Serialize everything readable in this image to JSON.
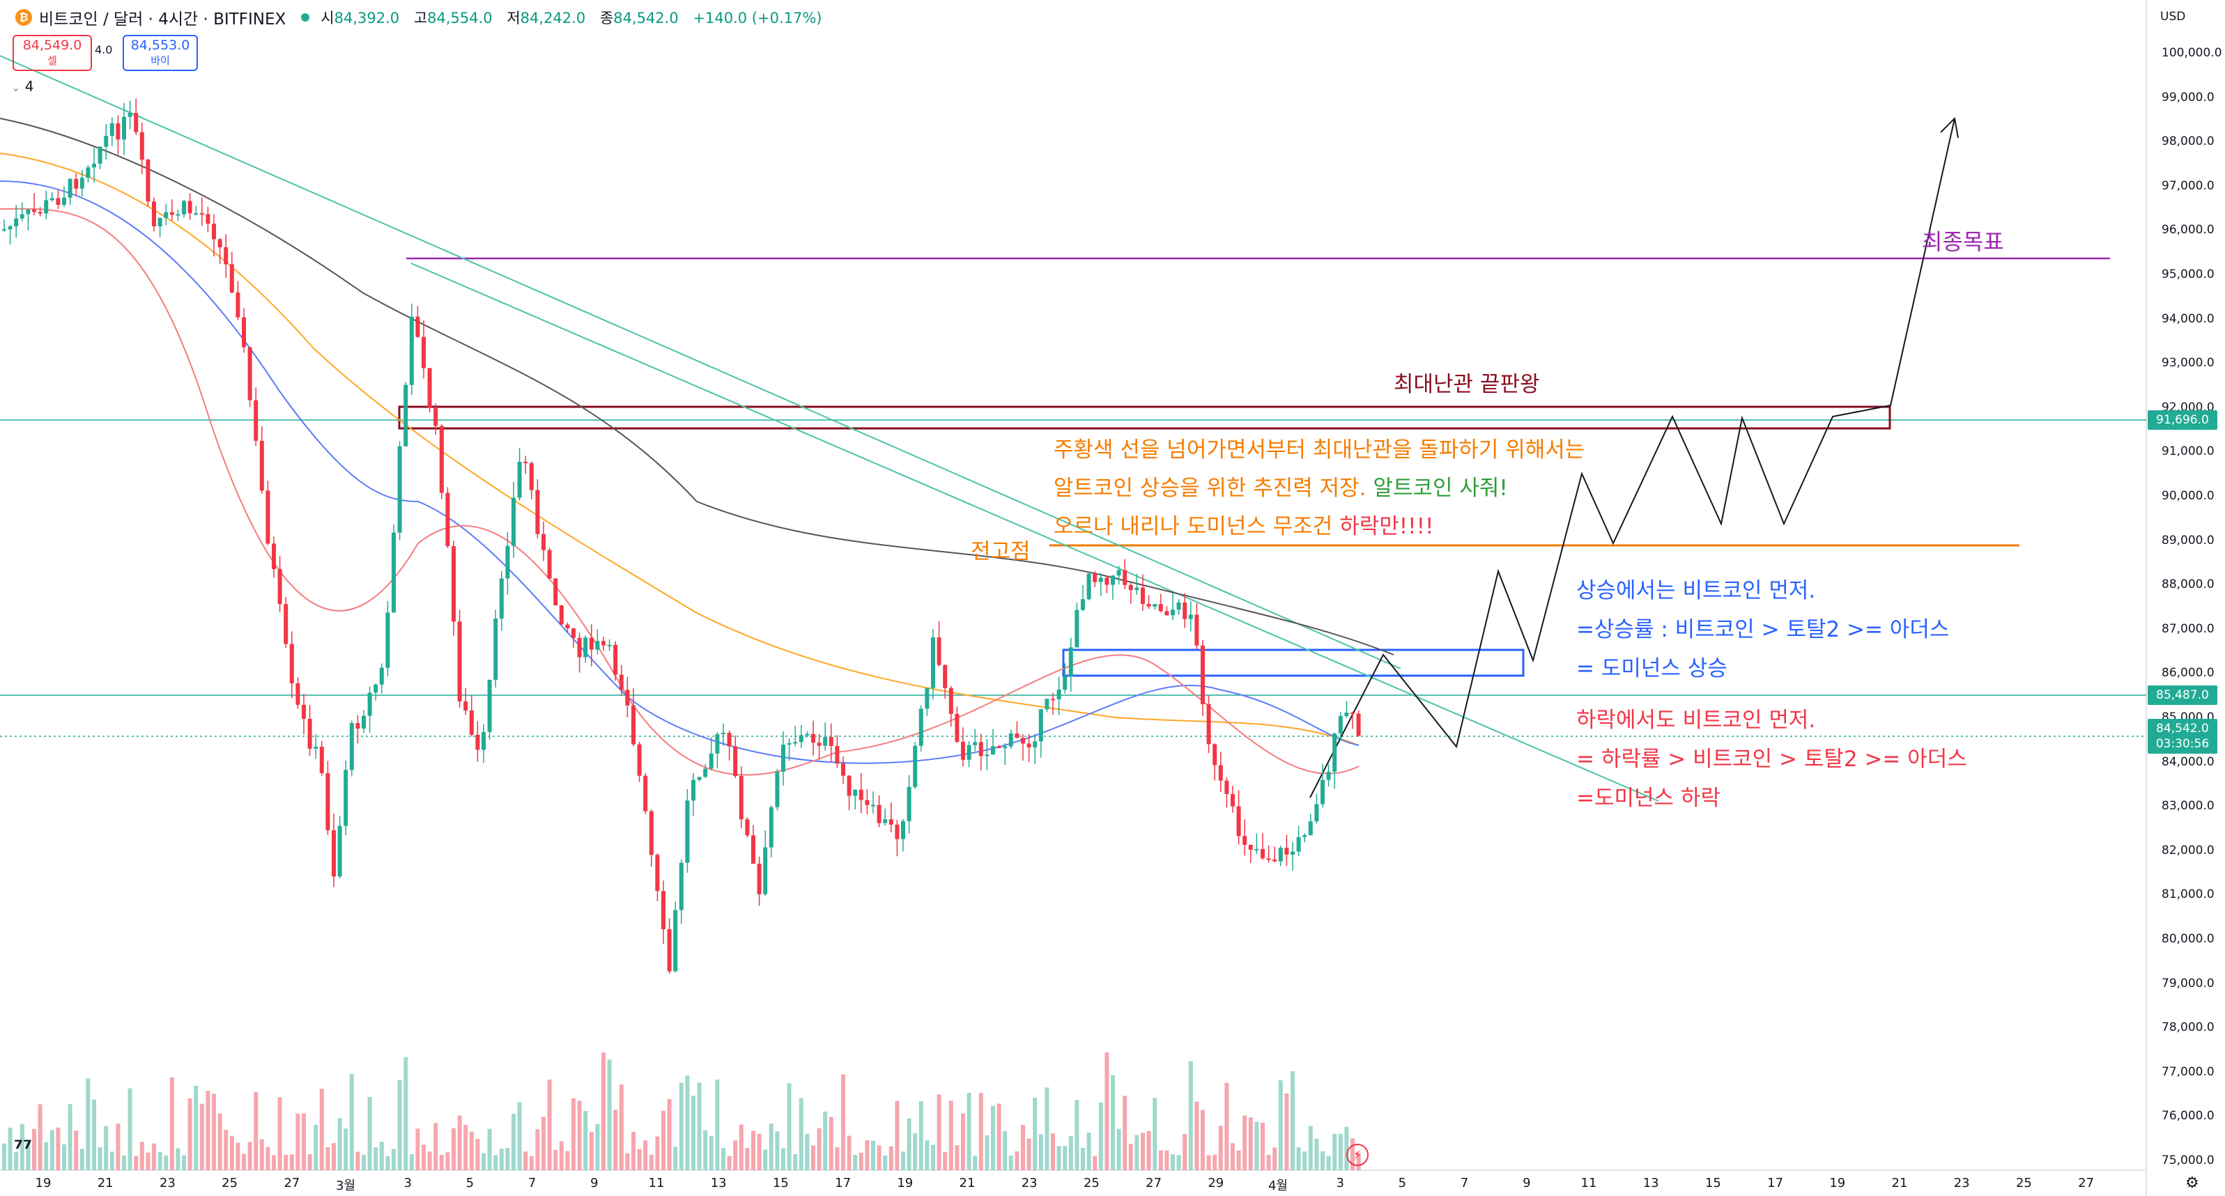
{
  "header": {
    "coin_icon": "bitcoin-icon",
    "symbol_title": "비트코인 / 달러 · 4시간 · BITFINEX",
    "ohlc": {
      "open_label": "시",
      "open": "84,392.0",
      "high_label": "고",
      "high": "84,554.0",
      "low_label": "저",
      "low": "84,242.0",
      "close_label": "종",
      "close": "84,542.0",
      "change": "+140.0 (+0.17%)"
    },
    "sell_price": "84,549.0",
    "sell_label": "셀",
    "spread": "4.0",
    "buy_price": "84,553.0",
    "buy_label": "바이",
    "volume_indicator_label": "4"
  },
  "price_axis": {
    "currency": "USD",
    "ticks": [
      "100,000.0",
      "99,000.0",
      "98,000.0",
      "97,000.0",
      "96,000.0",
      "95,000.0",
      "94,000.0",
      "93,000.0",
      "92,000.0",
      "91,000.0",
      "90,000.0",
      "89,000.0",
      "88,000.0",
      "87,000.0",
      "86,000.0",
      "85,000.0",
      "84,000.0",
      "83,000.0",
      "82,000.0",
      "81,000.0",
      "80,000.0",
      "79,000.0",
      "78,000.0",
      "77,000.0",
      "76,000.0",
      "75,000.0"
    ],
    "tags": {
      "resistance": "91,696.0",
      "level": "85,487.0",
      "last_price": "84,542.0",
      "countdown": "03:30:56"
    }
  },
  "time_axis": {
    "ticks": [
      "19",
      "21",
      "23",
      "25",
      "27",
      "3월",
      "3",
      "5",
      "7",
      "9",
      "11",
      "13",
      "15",
      "17",
      "19",
      "21",
      "23",
      "25",
      "27",
      "29",
      "4월",
      "3",
      "5",
      "7",
      "9",
      "11",
      "13",
      "15",
      "17",
      "19",
      "21",
      "23",
      "25",
      "27"
    ]
  },
  "annotations": {
    "final_target": "최종목표",
    "biggest_obstacle": "최대난관 끝판왕",
    "orange_line_1": "주황색 선을 넘어가면서부터 최대난관을 돌파하기 위해서는",
    "orange_line_2a": "알트코인 상승을 위한 추진력 저장.",
    "orange_line_2b": "알트코인 사줘!",
    "orange_line_3a": "오르나 내리나 도미넌스 무조건",
    "orange_line_3b": "하락만!!!!",
    "prev_high": "전고점",
    "blue_1": "상승에서는 비트코인 먼저.",
    "blue_2": "=상승률 : 비트코인 > 토탈2 >= 아더스",
    "blue_3": "= 도미넌스 상승",
    "red_1": "하락에서도 비트코인 먼저.",
    "red_2": "= 하락률 > 비트코인 > 토탈2 >= 아더스",
    "red_3": "=도미넌스 하락"
  },
  "colors": {
    "up": "#22ab94",
    "down": "#f23645",
    "orange": "#f57c00",
    "purple": "#9c27b0",
    "dark_red": "#880e1f",
    "blue": "#2962ff",
    "green_text": "#2e9e3a"
  },
  "icons": {
    "logo": "tradingview-logo-icon",
    "flash": "lightning-icon",
    "settings": "gear-icon"
  }
}
